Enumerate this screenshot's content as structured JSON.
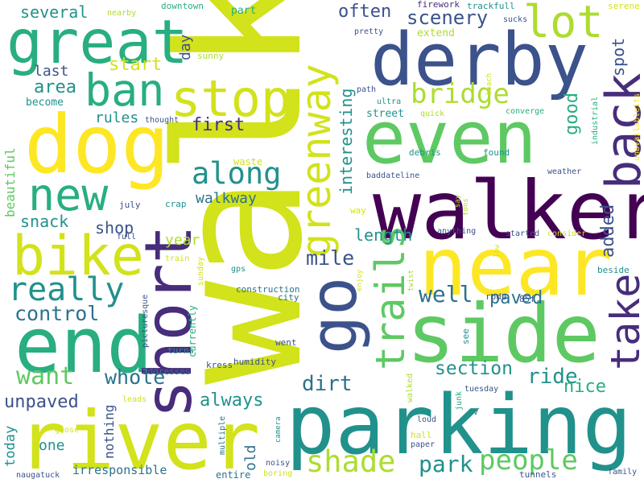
{
  "palette": {
    "c1": "#440154",
    "c2": "#472d7b",
    "c3": "#3b528b",
    "c4": "#2c728e",
    "c5": "#21918c",
    "c6": "#28ae80",
    "c7": "#5ec962",
    "c8": "#addc30",
    "c9": "#d2e21b",
    "c10": "#fde725"
  },
  "words": {
    "walk": "walk",
    "parking": "parking",
    "walker": "walker",
    "river": "river",
    "side": "side",
    "near": "near",
    "derby": "derby",
    "dog": "dog",
    "end": "end",
    "even": "even",
    "short": "short",
    "great": "great",
    "go": "go",
    "bike": "bike",
    "back": "back",
    "greenway": "greenway",
    "stop": "stop",
    "new": "new",
    "ban": "ban",
    "take": "take",
    "trails": "trails",
    "lot": "lot",
    "really": "really",
    "along": "along",
    "shade": "shade",
    "people": "people",
    "control": "control",
    "want": "want",
    "bridge": "bridge",
    "well": "well",
    "park": "park",
    "section": "section",
    "dirt": "dirt",
    "whole": "whole",
    "ride": "ride",
    "mile": "mile",
    "added": "added",
    "scenery": "scenery",
    "often": "often",
    "interesting": "interesting",
    "good": "good",
    "first": "first",
    "area": "area",
    "unpaved": "unpaved",
    "always": "always",
    "paved": "paved",
    "shop": "shop",
    "nice": "nice",
    "snack": "snack",
    "start": "start",
    "several": "several",
    "length": "length",
    "spot": "spot",
    "walkway": "walkway",
    "year": "year",
    "rules": "rules",
    "last": "last",
    "day": "day",
    "beautiful": "beautiful",
    "old": "old",
    "today": "today",
    "one": "one",
    "nothing": "nothing",
    "irresponsible": "irresponsible",
    "become": "become",
    "part": "part",
    "sunny": "sunny",
    "extend": "extend",
    "downtown": "downtown",
    "nearby": "nearby",
    "firework": "firework",
    "trackfull": "trackfull",
    "sucks": "sucks",
    "serene": "serene",
    "pretty": "pretty",
    "path": "path",
    "ultra": "ultra",
    "beach": "beach",
    "street": "street",
    "quick": "quick",
    "converge": "converge",
    "thought": "thought",
    "industrial": "industrial",
    "unavailableits": "unavailableits",
    "debris": "debris",
    "found": "found",
    "baddateline": "baddateline",
    "weather": "weather",
    "waste": "waste",
    "crap": "crap",
    "july": "july",
    "full": "full",
    "way": "way",
    "say": "say",
    "tons": "tons",
    "anything": "anything",
    "started": "started",
    "consider": "consider",
    "train": "train",
    "sunday": "sunday",
    "gps": "gps",
    "low": "low",
    "beside": "beside",
    "construction": "construction",
    "city": "city",
    "enjoy": "enjoy",
    "twist": "twist",
    "rode": "rode",
    "85f": "85f",
    "picturesque": "picturesque",
    "currently": "currently",
    "went": "went",
    "see": "see",
    "turns": "turns",
    "humidity": "humidity",
    "addresses": "addresses",
    "kress": "kress",
    "leads": "leads",
    "walked": "walked",
    "tuesday": "tuesday",
    "junk": "junk",
    "hall": "hall",
    "goose": "goose",
    "multiple": "multiple",
    "camera": "camera",
    "loud": "loud",
    "v": "v",
    "paper": "paper",
    "noisy": "noisy",
    "boring": "boring",
    "entire": "entire",
    "naugatuck": "naugatuck",
    "tunnels": "tunnels",
    "family": "family"
  }
}
